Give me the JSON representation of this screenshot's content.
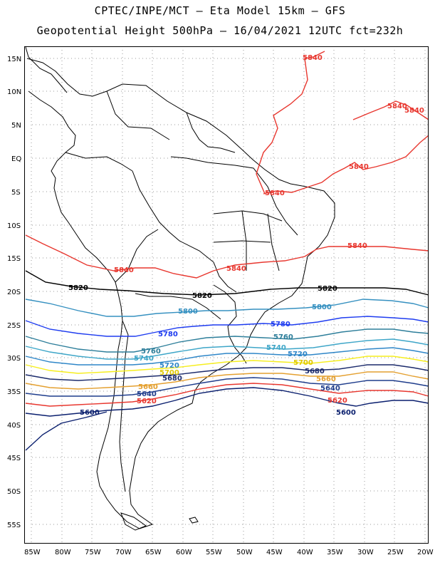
{
  "header": {
    "line1": "CPTEC/INPE/MCT –  Eta Model 15km – GFS",
    "line2": "Geopotential Height 500hPa – 16/04/2021 12UTC fct=232h"
  },
  "map": {
    "lon_range": [
      -86,
      -20
    ],
    "lat_range": [
      -58,
      17
    ],
    "grid": "dotted",
    "lat_ticks": [
      "15N",
      "10N",
      "5N",
      "EQ",
      "5S",
      "10S",
      "15S",
      "20S",
      "25S",
      "30S",
      "35S",
      "40S",
      "45S",
      "50S",
      "55S"
    ],
    "lon_ticks": [
      "85W",
      "80W",
      "75W",
      "70W",
      "65W",
      "60W",
      "55W",
      "50W",
      "45W",
      "40W",
      "35W",
      "30W",
      "25W",
      "20W"
    ]
  },
  "contour_colors": {
    "5600": "#0a1f6e",
    "5620": "#e8372f",
    "5640": "#1f3d8c",
    "5660": "#e4a030",
    "5680": "#1b2a6b",
    "5700": "#f6ee1e",
    "5720": "#2e86c8",
    "5740": "#3ea6c8",
    "5760": "#2d7e9a",
    "5780": "#1e3cf0",
    "5800": "#3590c0",
    "5820": "#000000",
    "5840": "#e8372f"
  },
  "contour_labels": {
    "l5840_a": "5840",
    "l5840_b": "5840",
    "l5840_c": "5840",
    "l5840_d": "5840",
    "l5840_e": "5840",
    "l5840_f": "5840",
    "l5840_g": "5840",
    "l5840_h": "5840",
    "l5820_a": "5820",
    "l5820_b": "5820",
    "l5820_c": "5820",
    "l5800_a": "5800",
    "l5800_b": "5800",
    "l5780_a": "5780",
    "l5780_b": "5780",
    "l5760_a": "5760",
    "l5760_b": "5760",
    "l5740_a": "5740",
    "l5740_b": "5740",
    "l5720_a": "5720",
    "l5720_b": "5720",
    "l5700_a": "5700",
    "l5700_b": "5700",
    "l5680_a": "5680",
    "l5680_b": "5680",
    "l5660_a": "5660",
    "l5660_b": "5660",
    "l5640_a": "5640",
    "l5640_b": "5640",
    "l5620_a": "5620",
    "l5620_b": "5620",
    "l5600_a": "5600",
    "l5600_b": "5600"
  }
}
